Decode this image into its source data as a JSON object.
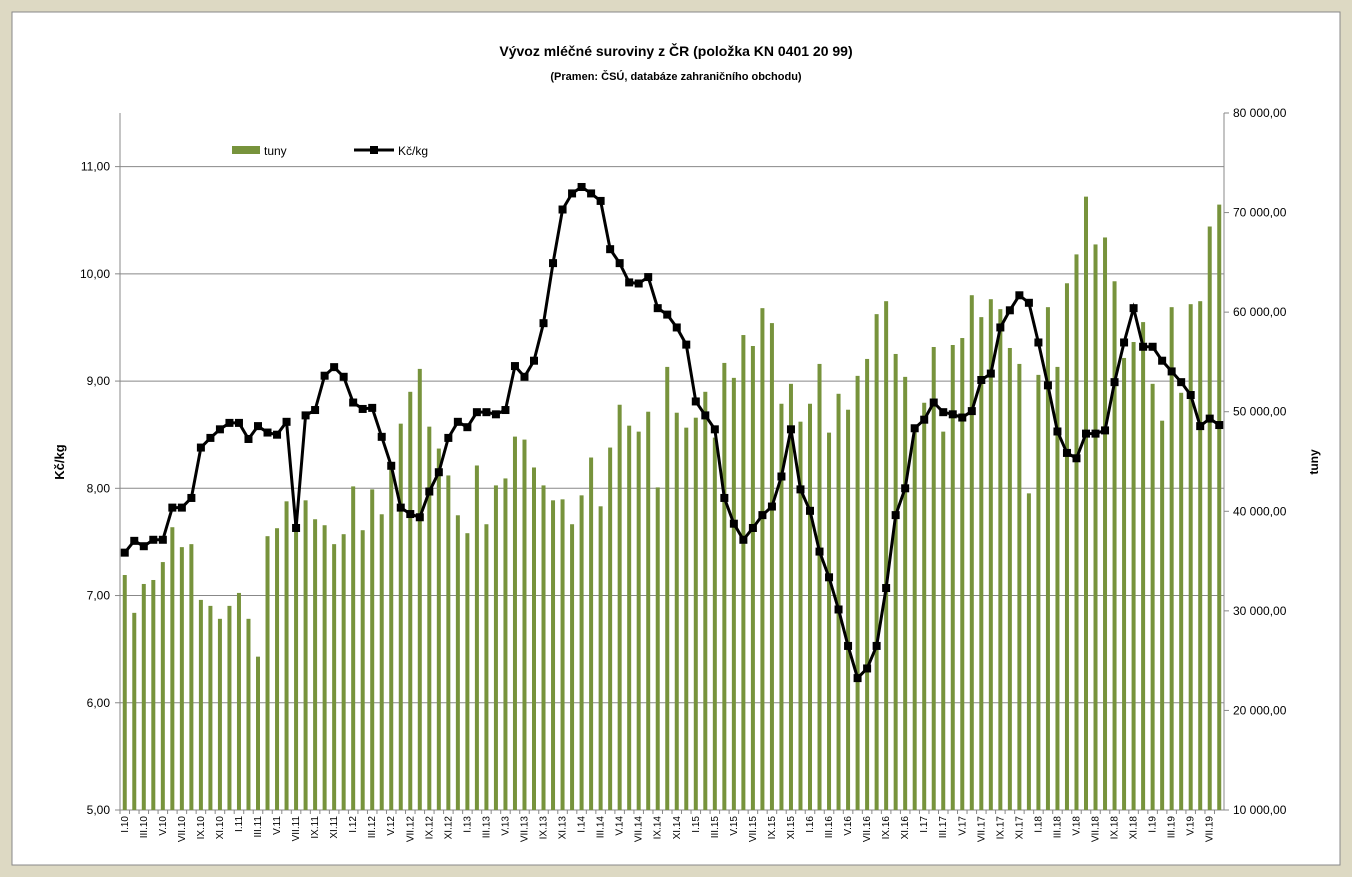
{
  "chart_data": {
    "type": "bar-line",
    "title": "Vývoz mléčné suroviny z ČR (položka KN 0401 20 99)",
    "subtitle": "(Pramen: ČSÚ, databáze zahraničního obchodu)",
    "ylabel": "Kč/kg",
    "y2label": "tuny",
    "legend": "top-left",
    "grid": true,
    "categories": [
      "I.10",
      null,
      "III.10",
      null,
      "V.10",
      null,
      "VII.10",
      null,
      "IX.10",
      null,
      "XI.10",
      null,
      "I.11",
      null,
      "III.11",
      null,
      "V.11",
      null,
      "VII.11",
      null,
      "IX.11",
      null,
      "XI.11",
      null,
      "I.12",
      null,
      "III.12",
      null,
      "V.12",
      null,
      "VII.12",
      null,
      "IX.12",
      null,
      "XI.12",
      null,
      "I.13",
      null,
      "III.13",
      null,
      "V.13",
      null,
      "VII.13",
      null,
      "IX.13",
      null,
      "XI.13",
      null,
      "I.14",
      null,
      "III.14",
      null,
      "V.14",
      null,
      "VII.14",
      null,
      "IX.14",
      null,
      "XI.14",
      null,
      "I.15",
      null,
      "III.15",
      null,
      "V.15",
      null,
      "VII.15",
      null,
      "IX.15",
      null,
      "XI.15",
      null,
      "I.16",
      null,
      "III.16",
      null,
      "V.16",
      null,
      "VII.16",
      null,
      "IX.16",
      null,
      "XI.16",
      null,
      "I.17",
      null,
      "III.17",
      null,
      "V.17",
      null,
      "VII.17",
      null,
      "IX.17",
      null,
      "XI.17",
      null,
      "I.18",
      null,
      "III.18",
      null,
      "V.18",
      null,
      "VII.18",
      null,
      "IX.18",
      null,
      "XI.18",
      null,
      "I.19",
      null,
      "III.19",
      null,
      "V.19",
      null,
      "VII.19",
      null
    ],
    "series": [
      {
        "name": "tuny",
        "type": "bar",
        "axis": "y2",
        "color": "#77933c",
        "values": [
          33600,
          29800,
          32700,
          33100,
          34900,
          38400,
          36400,
          36700,
          31100,
          30500,
          29200,
          30500,
          31800,
          29200,
          25400,
          37500,
          38300,
          41000,
          40000,
          41100,
          39200,
          38600,
          36700,
          37700,
          42500,
          38100,
          42200,
          39700,
          44800,
          48800,
          52000,
          54300,
          48500,
          46300,
          43600,
          39600,
          37800,
          44600,
          38700,
          42600,
          43300,
          47500,
          47200,
          44400,
          42600,
          41100,
          41200,
          38700,
          41600,
          45400,
          40500,
          46400,
          50700,
          48600,
          48000,
          50000,
          42400,
          54500,
          49900,
          48400,
          49400,
          52000,
          47400,
          54900,
          53400,
          57700,
          56600,
          60400,
          58900,
          50800,
          52800,
          49000,
          50800,
          54800,
          47900,
          51800,
          50200,
          53600,
          55300,
          59800,
          61100,
          55800,
          53500,
          48000,
          50900,
          56500,
          48000,
          56700,
          57400,
          61700,
          59500,
          61300,
          60300,
          56400,
          54800,
          41800,
          53700,
          60500,
          54500,
          62900,
          65800,
          71600,
          66800,
          67500,
          63100,
          55400,
          57000,
          59000,
          52800,
          49100,
          60500,
          51900,
          60800,
          61100,
          68600,
          70800
        ]
      },
      {
        "name": "Kč/kg",
        "type": "line",
        "axis": "y",
        "color": "#000000",
        "values": [
          7.4,
          7.51,
          7.46,
          7.52,
          7.52,
          7.82,
          7.82,
          7.91,
          8.38,
          8.47,
          8.55,
          8.61,
          8.61,
          8.46,
          8.58,
          8.52,
          8.5,
          8.62,
          7.63,
          8.68,
          8.73,
          9.05,
          9.13,
          9.04,
          8.8,
          8.74,
          8.75,
          8.48,
          8.21,
          7.82,
          7.76,
          7.73,
          7.97,
          8.15,
          8.47,
          8.62,
          8.57,
          8.71,
          8.71,
          8.69,
          8.73,
          9.14,
          9.04,
          9.19,
          9.54,
          10.1,
          10.6,
          10.75,
          10.81,
          10.75,
          10.68,
          10.23,
          10.1,
          9.92,
          9.91,
          9.97,
          9.68,
          9.62,
          9.5,
          9.34,
          8.81,
          8.68,
          8.55,
          7.91,
          7.67,
          7.52,
          7.63,
          7.75,
          7.83,
          8.11,
          8.55,
          7.99,
          7.79,
          7.41,
          7.17,
          6.87,
          6.53,
          6.23,
          6.32,
          6.53,
          7.07,
          7.75,
          8.0,
          8.56,
          8.64,
          8.8,
          8.71,
          8.69,
          8.66,
          8.72,
          9.01,
          9.07,
          9.5,
          9.66,
          9.8,
          9.73,
          9.36,
          8.96,
          8.53,
          8.33,
          8.28,
          8.51,
          8.51,
          8.54,
          8.99,
          9.36,
          9.68,
          9.32,
          9.32,
          9.19,
          9.09,
          8.99,
          8.87,
          8.58,
          8.65,
          8.59
        ]
      }
    ],
    "ylim": [
      5,
      11.5
    ],
    "yticks": [
      {
        "value": 5,
        "label": "5,00"
      },
      {
        "value": 6,
        "label": "6,00"
      },
      {
        "value": 7,
        "label": "7,00"
      },
      {
        "value": 8,
        "label": "8,00"
      },
      {
        "value": 9,
        "label": "9,00"
      },
      {
        "value": 10,
        "label": "10,00"
      },
      {
        "value": 11,
        "label": "11,00"
      }
    ],
    "y2lim": [
      10000,
      80000
    ],
    "y2ticks": [
      {
        "value": 10000,
        "label": "10 000,00"
      },
      {
        "value": 20000,
        "label": "20 000,00"
      },
      {
        "value": 30000,
        "label": "30 000,00"
      },
      {
        "value": 40000,
        "label": "40 000,00"
      },
      {
        "value": 50000,
        "label": "50 000,00"
      },
      {
        "value": 60000,
        "label": "60 000,00"
      },
      {
        "value": 70000,
        "label": "70 000,00"
      },
      {
        "value": 80000,
        "label": "80 000,00"
      }
    ]
  }
}
